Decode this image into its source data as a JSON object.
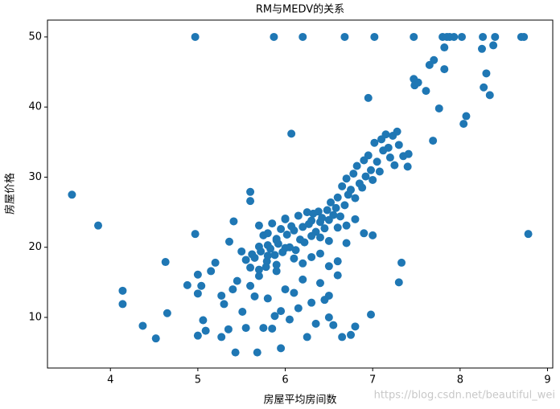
{
  "chart_data": {
    "type": "scatter",
    "title": "RM与MEDV的关系",
    "x_label": "房屋平均房间数",
    "y_label": "房屋价格",
    "watermark": "https://blog.csdn.net/beautiful_wei",
    "color": "#1f77b4",
    "xlim": [
      3.28,
      9.06
    ],
    "ylim": [
      2.78,
      52.4
    ],
    "xticks": [
      4,
      5,
      6,
      7,
      8,
      9
    ],
    "yticks": [
      10,
      20,
      30,
      40,
      50
    ],
    "x": [
      3.56,
      3.86,
      4.14,
      4.14,
      4.37,
      4.52,
      4.63,
      4.65,
      4.88,
      4.97,
      4.97,
      5.0,
      5.0,
      5.0,
      5.04,
      5.06,
      5.09,
      5.15,
      5.2,
      5.27,
      5.27,
      5.3,
      5.35,
      5.36,
      5.4,
      5.41,
      5.43,
      5.45,
      5.51,
      5.55,
      5.6,
      5.6,
      5.62,
      5.68,
      5.7,
      5.75,
      5.79,
      5.8,
      5.87,
      5.88,
      5.9,
      5.95,
      6.0,
      6.07,
      6.2,
      6.5,
      6.68,
      7.02,
      7.47,
      7.8,
      7.85,
      7.88,
      7.93,
      8.02,
      8.26,
      8.4,
      8.7,
      8.73,
      8.78,
      8.38,
      8.25,
      8.3,
      8.27,
      8.34,
      8.07,
      8.04,
      7.82,
      7.82,
      7.7,
      7.69,
      7.76,
      7.65,
      7.61,
      7.52,
      7.47,
      7.48,
      7.41,
      7.33,
      7.3,
      6.95,
      6.98,
      6.75,
      6.8,
      6.65,
      5.65,
      5.7,
      5.72,
      5.75,
      5.78,
      5.8,
      5.83,
      5.85,
      5.88,
      5.9,
      5.92,
      5.95,
      5.97,
      6.0,
      6.02,
      6.05,
      6.07,
      6.1,
      6.12,
      6.15,
      6.17,
      6.2,
      6.22,
      6.25,
      6.27,
      6.3,
      6.32,
      6.35,
      6.38,
      6.4,
      6.42,
      6.45,
      6.48,
      6.5,
      6.52,
      6.55,
      6.58,
      6.6,
      6.63,
      6.65,
      6.68,
      6.7,
      6.72,
      6.75,
      6.78,
      6.8,
      6.82,
      6.85,
      6.88,
      6.9,
      6.92,
      6.95,
      6.98,
      7.0,
      7.02,
      7.05,
      7.08,
      7.1,
      7.12,
      7.15,
      7.18,
      7.2,
      7.23,
      7.25,
      7.28,
      7.3,
      7.35,
      7.4,
      5.6,
      5.65,
      5.7,
      5.8,
      5.9,
      6.0,
      6.1,
      6.2,
      6.3,
      6.4,
      6.5,
      6.6,
      5.85,
      5.95,
      6.05,
      6.15,
      6.25,
      6.35,
      6.45,
      6.55,
      5.5,
      5.55,
      5.6,
      5.7,
      5.8,
      5.9,
      6.0,
      6.1,
      6.2,
      6.3,
      6.4,
      6.5,
      6.6,
      6.7,
      6.3,
      6.4,
      6.5,
      6.6,
      6.7,
      6.8,
      6.9,
      7.0
    ],
    "y": [
      27.5,
      23.1,
      13.8,
      11.9,
      8.8,
      7.0,
      17.9,
      10.6,
      14.6,
      50,
      21.9,
      13.4,
      16.1,
      7.4,
      14.5,
      9.6,
      8.1,
      16.6,
      17.8,
      13.1,
      7.2,
      11.9,
      8.3,
      20.8,
      14.0,
      23.7,
      5.0,
      15.2,
      10.8,
      8.5,
      27.9,
      26.6,
      19.0,
      5.0,
      23.1,
      8.5,
      18.0,
      20.3,
      50,
      10.2,
      21.0,
      5.6,
      24.0,
      36.2,
      50,
      10.0,
      50,
      50,
      50,
      50,
      50,
      50,
      50,
      50,
      50,
      50,
      50,
      50,
      21.9,
      48.8,
      48.3,
      44.8,
      42.8,
      41.7,
      38.7,
      37.6,
      48.5,
      45.4,
      46.7,
      35.2,
      39.8,
      46.0,
      42.3,
      43.5,
      44.0,
      43.1,
      33.3,
      17.8,
      15.0,
      41.3,
      10.4,
      7.5,
      8.7,
      7.2,
      18.5,
      20.1,
      19.4,
      21.7,
      17.2,
      22.0,
      19.8,
      23.4,
      18.9,
      21.2,
      20.5,
      22.6,
      19.3,
      24.1,
      21.8,
      20.0,
      23.0,
      22.4,
      19.6,
      24.5,
      21.1,
      22.9,
      20.7,
      25.0,
      23.3,
      21.6,
      24.8,
      22.2,
      25.1,
      23.6,
      24.2,
      22.7,
      25.3,
      23.9,
      26.4,
      24.6,
      25.6,
      27.1,
      24.4,
      28.7,
      26.0,
      29.8,
      27.5,
      28.2,
      30.5,
      27.0,
      31.6,
      29.1,
      28.5,
      32.4,
      30.1,
      33.1,
      31.0,
      29.6,
      34.9,
      32.2,
      30.8,
      35.4,
      33.8,
      36.1,
      34.2,
      32.8,
      35.9,
      31.7,
      36.5,
      34.6,
      33.0,
      31.5,
      14.5,
      13.0,
      15.9,
      12.7,
      16.6,
      14.0,
      13.5,
      15.4,
      12.1,
      14.9,
      13.1,
      16.0,
      8.4,
      10.9,
      9.7,
      11.3,
      7.2,
      9.1,
      12.5,
      8.9,
      19.4,
      18.2,
      17.1,
      16.8,
      18.8,
      17.5,
      19.9,
      18.4,
      17.7,
      18.6,
      19.1,
      17.3,
      18.0,
      20.6,
      23.8,
      21.4,
      20.9,
      22.8,
      23.1,
      24.0,
      22.0,
      21.7
    ]
  }
}
